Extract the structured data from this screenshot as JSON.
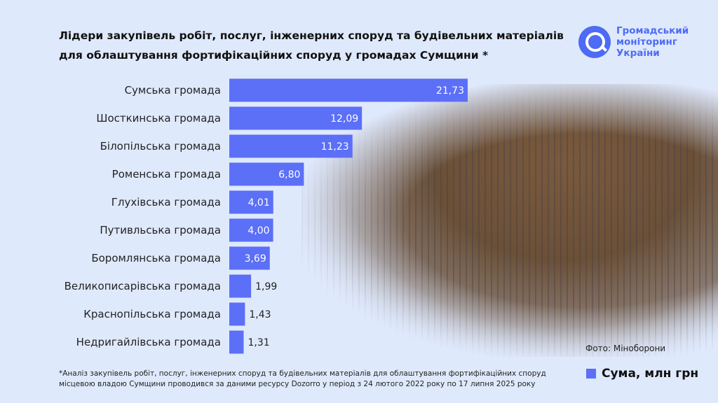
{
  "title_lines": [
    "Лідери закупівель робіт, послуг, інженерних споруд та будівельних матеріалів",
    "для облаштування фортифікаційних споруд у громадах Сумщини *"
  ],
  "logo": {
    "lines": [
      "Громадський",
      "моніторинг",
      "України"
    ]
  },
  "photo_credit": "Фото: Міноборони",
  "footnote_lines": [
    "*Аналіз закупівель робіт, послуг, інженерних споруд та будівельних матеріалів для облаштування фортифікаційних споруд",
    "місцевою владою Сумщини проводився за даними ресурсу Dozorro у період з 24 лютого 2022 року по 17 липня 2025 року"
  ],
  "colors": {
    "bar": "#5b6ff7",
    "background": "#dfe9fc"
  },
  "chart_data": {
    "type": "bar",
    "orientation": "horizontal",
    "categories": [
      "Сумська громада",
      "Шосткинська громада",
      "Білопільська громада",
      "Роменська громада",
      "Глухівська громада",
      "Путивльська громада",
      "Боромлянська громада",
      "Великописарівська громада",
      "Краснопільська громада",
      "Недригайлівська громада"
    ],
    "series": [
      {
        "name": "Сума, млн грн",
        "values": [
          21.73,
          12.09,
          11.23,
          6.8,
          4.01,
          4.0,
          3.69,
          1.99,
          1.43,
          1.31
        ]
      }
    ],
    "data_labels": [
      "21,73",
      "12,09",
      "11,23",
      "6,80",
      "4,01",
      "4,00",
      "3,69",
      "1,99",
      "1,43",
      "1,31"
    ],
    "legend": "bottom-right",
    "grid": false
  }
}
